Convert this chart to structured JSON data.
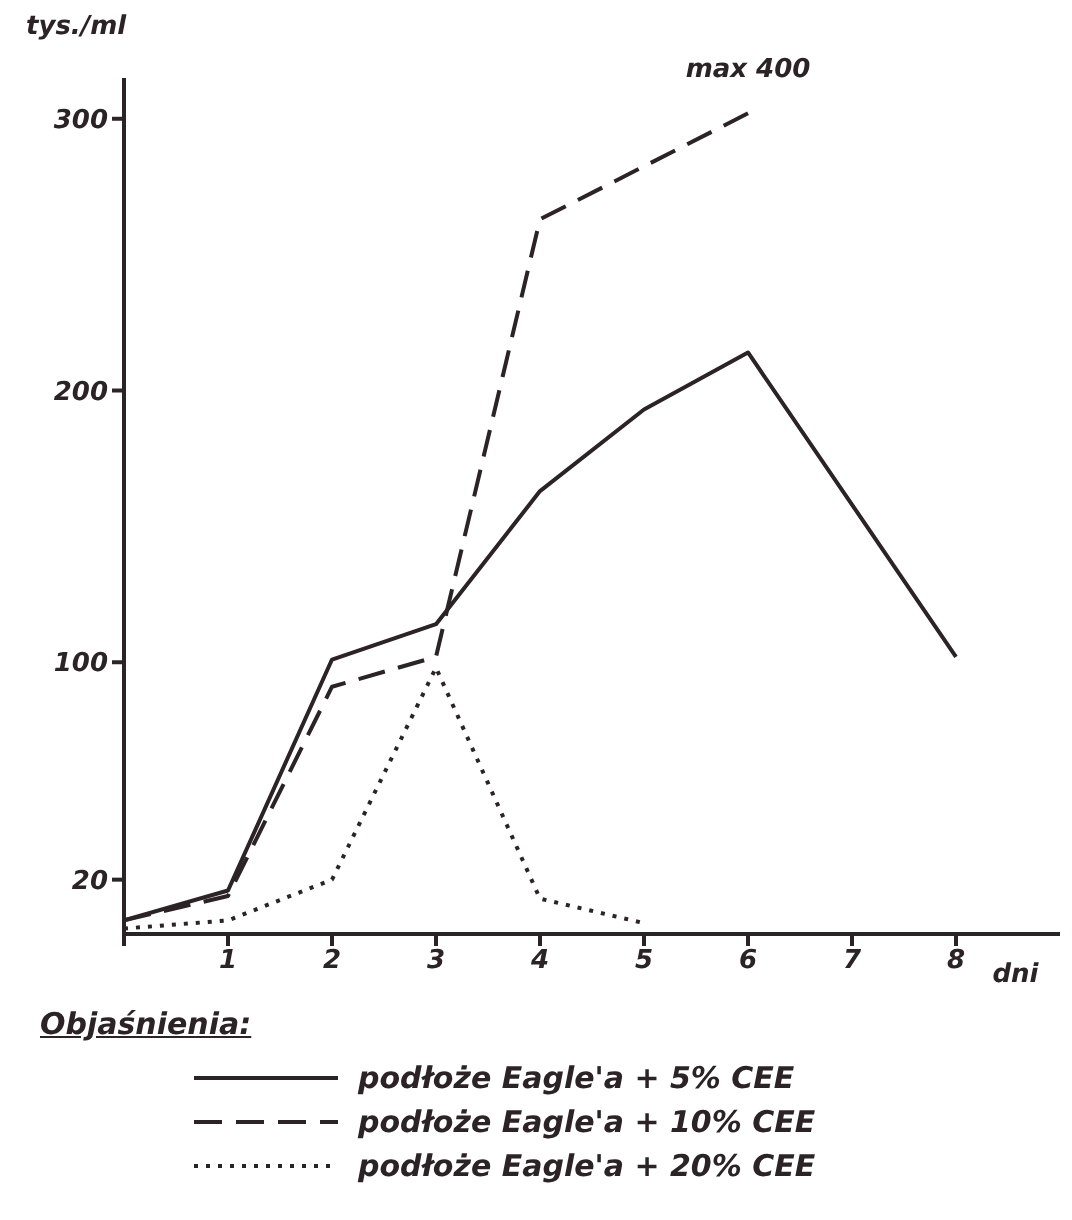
{
  "chart_data": {
    "type": "line",
    "xlabel": "dni",
    "ylabel": "tys./ml",
    "legend_title": "Objaśnienia:",
    "legend": "bottom",
    "grid": false,
    "marker": "none",
    "xlim": [
      0,
      9
    ],
    "xticks": [
      {
        "value": 0,
        "label": null
      },
      1,
      2,
      3,
      4,
      5,
      6,
      7,
      8
    ],
    "ylim": [
      0,
      315
    ],
    "yticks": [
      20,
      100,
      200,
      300
    ],
    "annotations": [
      {
        "text": "max 400",
        "x": 6,
        "y": 302
      }
    ],
    "series": [
      {
        "name": "podłoże Eagle'a + 5% CEE",
        "color": "#2b2326",
        "line_style": "solid",
        "x": [
          0,
          1,
          2,
          3,
          4,
          5,
          6,
          8
        ],
        "values": [
          5,
          16,
          101,
          114,
          163,
          193,
          214,
          102
        ]
      },
      {
        "name": "podłoże Eagle'a + 10% CEE",
        "color": "#2b2326",
        "line_style": "dashed",
        "x": [
          0,
          1,
          2,
          3,
          4,
          6
        ],
        "values": [
          5,
          14,
          91,
          102,
          263,
          302
        ]
      },
      {
        "name": "podłoże Eagle'a + 20% CEE",
        "color": "#2b2326",
        "line_style": "dotted",
        "x": [
          0,
          1,
          2,
          3,
          4,
          5
        ],
        "values": [
          2,
          5,
          20,
          98,
          13,
          4
        ]
      }
    ]
  }
}
